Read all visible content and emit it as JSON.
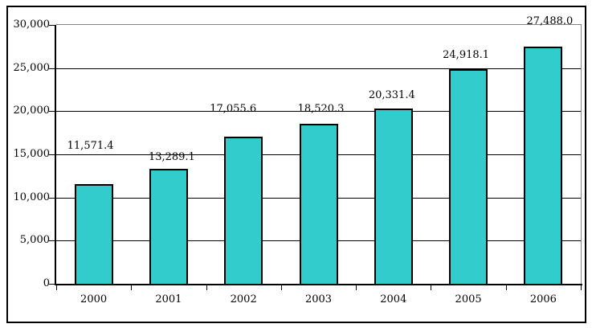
{
  "chart_data": {
    "type": "bar",
    "title": "",
    "xlabel": "",
    "ylabel": "",
    "categories": [
      "2000",
      "2001",
      "2002",
      "2003",
      "2004",
      "2005",
      "2006"
    ],
    "values": [
      11571.4,
      13289.1,
      17055.6,
      18520.3,
      20331.4,
      24918.1,
      27488.0
    ],
    "data_labels": [
      "11,571.4",
      "13,289.1",
      "17,055.6",
      "18,520.3",
      "20,331.4",
      "24,918.1",
      "27,488.0"
    ],
    "y_ticks": [
      0,
      5000,
      10000,
      15000,
      20000,
      25000,
      30000
    ],
    "y_tick_labels": [
      "0",
      "5,000",
      "10,000",
      "15,000",
      "20,000",
      "25,000",
      "30,000"
    ],
    "ylim": [
      0,
      30000
    ],
    "grid": true,
    "legend": false,
    "colors": {
      "bar_fill": "#33CCCC",
      "bar_border": "#000000",
      "gridline": "#000000",
      "plot_border": "#848284",
      "chart_border": "#000000",
      "background": "#FFFFFF",
      "text": "#000000"
    },
    "label_layout": {
      "y_tops": [
        174,
        188,
        128,
        128,
        111,
        61,
        19
      ],
      "x_offsets": [
        -4,
        4,
        -13,
        3,
        -2,
        -3,
        8
      ]
    }
  }
}
